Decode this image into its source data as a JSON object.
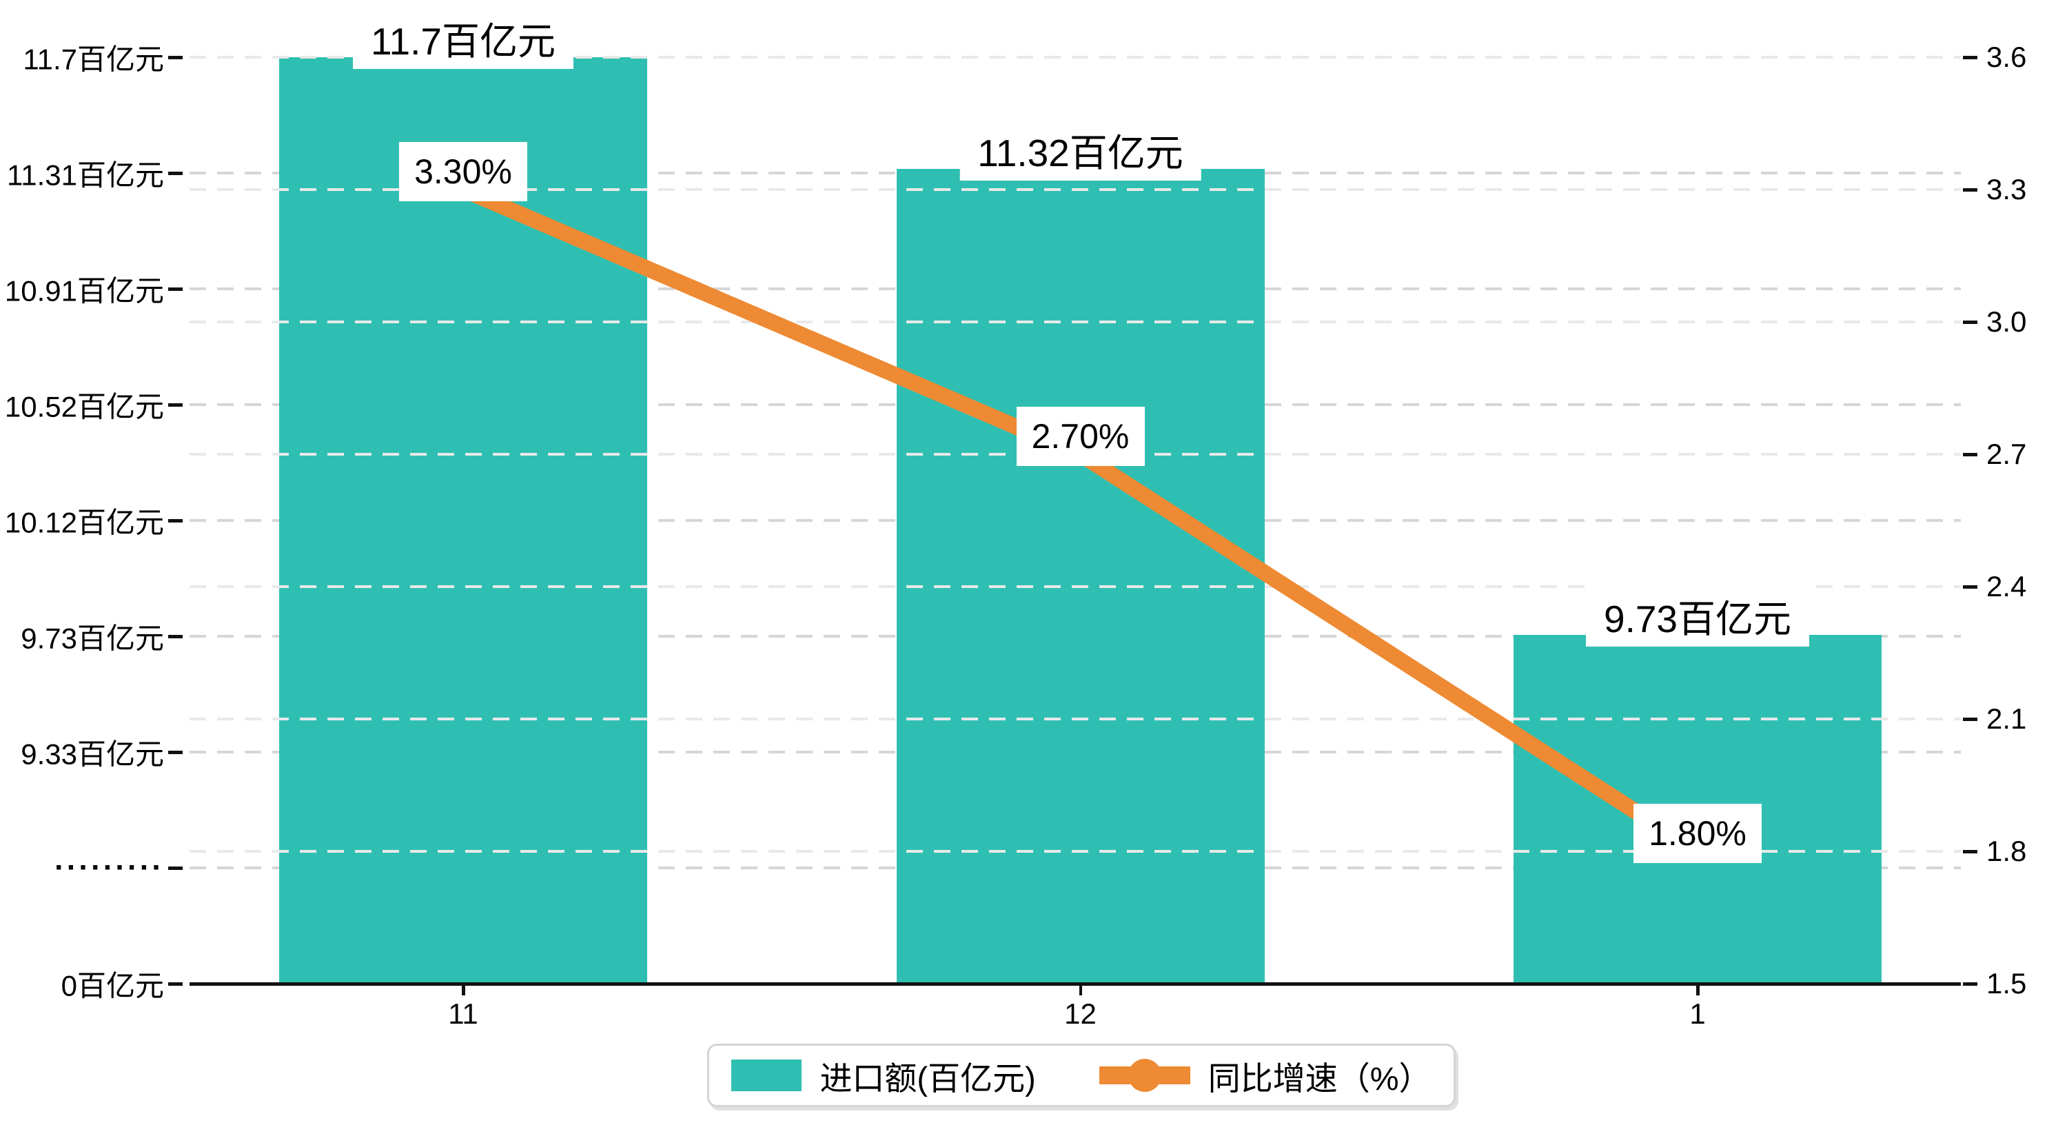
{
  "chart_data": {
    "type": "bar",
    "subtype": "dual-axis-bar-line-combo",
    "categories": [
      "11",
      "12",
      "1"
    ],
    "series": [
      {
        "name": "进口额(百亿元)",
        "type": "bar",
        "axis": "left",
        "color": "#2fbfb2",
        "values": [
          11.7,
          11.32,
          9.73
        ],
        "data_labels": [
          "11.7百亿元",
          "11.32百亿元",
          "9.73百亿元"
        ]
      },
      {
        "name": "同比增速（%）",
        "type": "line",
        "axis": "right",
        "color": "#ed8a33",
        "values": [
          3.3,
          2.7,
          1.8
        ],
        "data_labels": [
          "3.30%",
          "2.70%",
          "1.80%"
        ]
      }
    ],
    "left_axis": {
      "broken_axis": true,
      "tick_labels": [
        "11.7百亿元",
        "11.31百亿元",
        "10.91百亿元",
        "10.52百亿元",
        "10.12百亿元",
        "9.73百亿元",
        "9.33百亿元",
        "·········",
        "0百亿元"
      ],
      "tick_values": [
        11.7,
        11.31,
        10.91,
        10.52,
        10.12,
        9.73,
        9.33,
        null,
        0
      ],
      "scale_above_break": [
        9.33,
        11.7
      ]
    },
    "right_axis": {
      "tick_labels": [
        "3.6",
        "3.3",
        "3.0",
        "2.7",
        "2.4",
        "2.1",
        "1.8",
        "1.5"
      ],
      "range": [
        1.5,
        3.6
      ]
    },
    "grid": {
      "style": "dashed",
      "orientation": "horizontal"
    },
    "legend_position": "bottom-center",
    "background_color": "#ffffff"
  },
  "legend": {
    "items": [
      {
        "label": "进口额(百亿元)",
        "marker": "square",
        "color": "#2fbfb2"
      },
      {
        "label": "同比增速（%）",
        "marker": "line-with-circle",
        "color": "#ed8a33"
      }
    ]
  },
  "colors": {
    "bar": "#2fbfb2",
    "line": "#ed8a33",
    "axis": "#111111",
    "text": "#000000",
    "grid_left": "#d6d6d6",
    "grid_right": "#e9e9e9",
    "label_box_bg": "#ffffff"
  }
}
